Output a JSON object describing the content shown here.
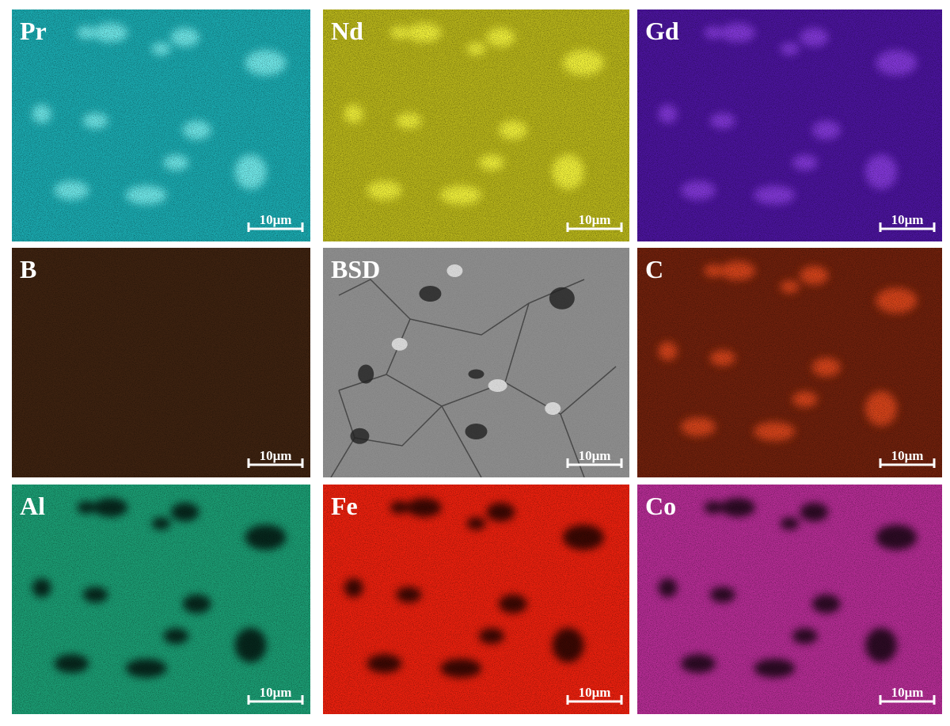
{
  "panels": [
    {
      "label": "Pr",
      "scale_bar": "10μm"
    },
    {
      "label": "Nd",
      "scale_bar": "10μm"
    },
    {
      "label": "Gd",
      "scale_bar": "10μm"
    },
    {
      "label": "B",
      "scale_bar": "10μm"
    },
    {
      "label": "BSD",
      "scale_bar": "10μm"
    },
    {
      "label": "C",
      "scale_bar": "10μm"
    },
    {
      "label": "Al",
      "scale_bar": "10μm"
    },
    {
      "label": "Fe",
      "scale_bar": "10μm"
    },
    {
      "label": "Co",
      "scale_bar": "10μm"
    }
  ]
}
